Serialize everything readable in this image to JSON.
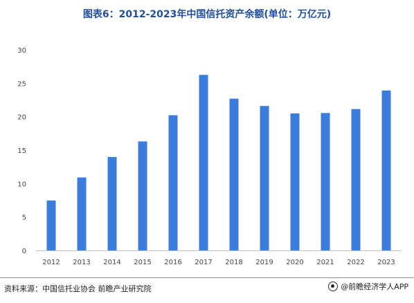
{
  "title": "图表6：2012-2023年中国信托资产余额(单位：万亿元)",
  "source": "资料来源：中国信托业协会 前瞻产业研究院",
  "brand": "@前瞻经济学人APP",
  "colors": {
    "bar": "#3b7ddd",
    "axis": "#bfbfbf",
    "title": "#1f4e9c"
  },
  "chart_data": {
    "type": "bar",
    "categories": [
      "2012",
      "2013",
      "2014",
      "2015",
      "2016",
      "2017",
      "2018",
      "2019",
      "2020",
      "2021",
      "2022",
      "2023"
    ],
    "values": [
      7.47,
      10.91,
      13.98,
      16.3,
      20.22,
      26.25,
      22.7,
      21.6,
      20.49,
      20.55,
      21.14,
      23.92
    ],
    "ylim": [
      0,
      30
    ],
    "yticks": [
      0,
      5,
      10,
      15,
      20,
      25,
      30
    ],
    "grid": false,
    "xlabel": "",
    "ylabel": ""
  }
}
